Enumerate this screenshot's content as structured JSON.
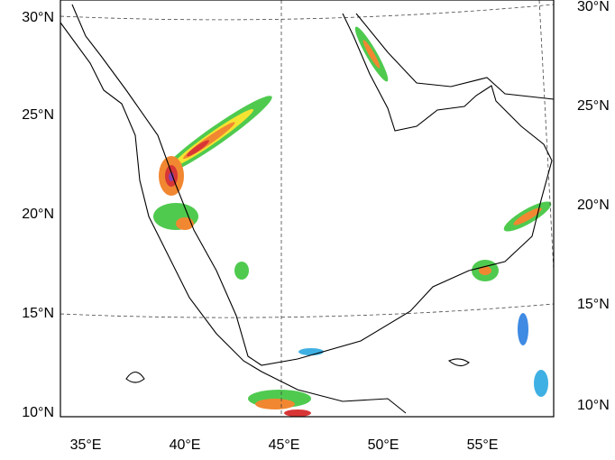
{
  "left_labels": [
    "30°N",
    "25°N",
    "20°N",
    "15°N",
    "10°N"
  ],
  "right_labels": [
    "30°N",
    "25°N",
    "20°N",
    "15°N",
    "10°N"
  ],
  "bottom_labels": [
    "35°E",
    "40°E",
    "45°E",
    "50°E",
    "55°E"
  ]
}
